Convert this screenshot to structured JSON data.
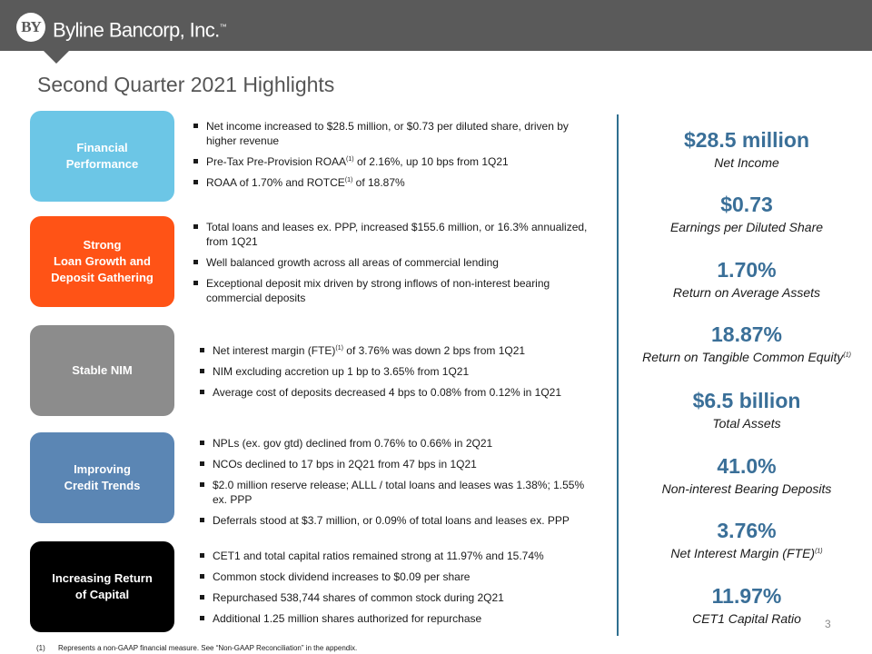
{
  "header": {
    "logo_mark": "BY",
    "company_name": "Byline Bancorp, Inc.",
    "trademark": "™"
  },
  "page_title": "Second Quarter 2021 Highlights",
  "colors": {
    "header": "#5a5a5a",
    "financial_performance": "#6cc6e6",
    "loan_growth": "#ff5316",
    "stable_nim": "#8c8c8c",
    "credit_trends": "#5b86b4",
    "return_of_capital": "#000000",
    "metric_value": "#3a6f98"
  },
  "sections": [
    {
      "label_lines": [
        "Financial",
        "Performance"
      ],
      "bullets": [
        {
          "text": "Net income increased to $28.5 million, or $0.73 per diluted share, driven by higher revenue"
        },
        {
          "pre": "Pre-Tax Pre-Provision ROAA",
          "sup": "(1)",
          "post": " of 2.16%, up 10 bps from 1Q21"
        },
        {
          "pre": "ROAA of 1.70% and ROTCE",
          "sup": "(1)",
          "post": " of 18.87%"
        }
      ]
    },
    {
      "label_lines": [
        "Strong",
        "Loan Growth and",
        "Deposit Gathering"
      ],
      "bullets": [
        {
          "text": "Total loans and leases ex. PPP, increased $155.6 million, or 16.3% annualized, from 1Q21"
        },
        {
          "text": "Well balanced growth across all areas of commercial lending"
        },
        {
          "text": "Exceptional deposit mix driven by strong inflows of non-interest bearing commercial deposits"
        }
      ]
    },
    {
      "label_lines": [
        "Stable NIM"
      ],
      "bullets": [
        {
          "pre": "Net interest margin (FTE)",
          "sup": "(1)",
          "post": " of 3.76% was down 2 bps from 1Q21"
        },
        {
          "text": "NIM excluding accretion up 1 bp to 3.65% from 1Q21"
        },
        {
          "text": "Average cost of deposits decreased 4 bps to 0.08% from 0.12% in 1Q21"
        }
      ]
    },
    {
      "label_lines": [
        "Improving",
        "Credit Trends"
      ],
      "bullets": [
        {
          "text": "NPLs (ex. gov gtd) declined from 0.76% to 0.66% in 2Q21"
        },
        {
          "text": "NCOs declined to 17 bps in 2Q21 from 47 bps in 1Q21"
        },
        {
          "text": "$2.0 million reserve release; ALLL / total loans and leases was 1.38%; 1.55% ex. PPP"
        },
        {
          "text": "Deferrals stood at $3.7 million, or 0.09% of total loans and leases ex. PPP"
        }
      ]
    },
    {
      "label_lines": [
        "Increasing Return",
        "of Capital"
      ],
      "bullets": [
        {
          "text": "CET1 and total capital ratios remained strong at 11.97% and 15.74%"
        },
        {
          "text": "Common stock dividend increases to $0.09 per share"
        },
        {
          "text": "Repurchased 538,744 shares of common stock during 2Q21"
        },
        {
          "text": "Additional 1.25 million shares authorized for repurchase"
        }
      ]
    }
  ],
  "metrics": [
    {
      "value": "$28.5 million",
      "label": "Net Income",
      "sup": ""
    },
    {
      "value": "$0.73",
      "label": "Earnings per Diluted Share",
      "sup": ""
    },
    {
      "value": "1.70%",
      "label": "Return on Average Assets",
      "sup": ""
    },
    {
      "value": "18.87%",
      "label": "Return on Tangible Common Equity",
      "sup": "(1)"
    },
    {
      "value": "$6.5 billion",
      "label": "Total Assets",
      "sup": ""
    },
    {
      "value": "41.0%",
      "label": "Non-interest Bearing Deposits",
      "sup": ""
    },
    {
      "value": "3.76%",
      "label": "Net Interest Margin (FTE)",
      "sup": "(1)"
    },
    {
      "value": "11.97%",
      "label": "CET1 Capital Ratio",
      "sup": ""
    }
  ],
  "page_number": "3",
  "footnote": {
    "marker": "(1)",
    "text": "Represents a non-GAAP financial measure.  See “Non-GAAP Reconciliation” in the appendix."
  }
}
